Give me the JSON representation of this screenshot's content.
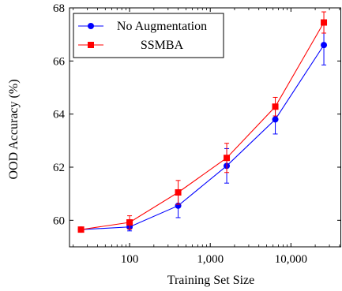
{
  "chart_data": {
    "type": "line",
    "xscale": "log",
    "xlabel": "Training Set Size",
    "ylabel": "OOD Accuracy (%)",
    "xlim": [
      18,
      42000
    ],
    "ylim": [
      59.0,
      68.0
    ],
    "xticks": [
      {
        "value": 100,
        "label": "100"
      },
      {
        "value": 1000,
        "label": "1,000"
      },
      {
        "value": 10000,
        "label": "10,000"
      }
    ],
    "yticks": [
      {
        "value": 60,
        "label": "60"
      },
      {
        "value": 62,
        "label": "62"
      },
      {
        "value": 64,
        "label": "64"
      },
      {
        "value": 66,
        "label": "66"
      },
      {
        "value": 68,
        "label": "68"
      }
    ],
    "grid": false,
    "legend_position": "top-left",
    "series": [
      {
        "name": "No Augmentation",
        "color": "#0000ff",
        "marker": "circle",
        "x": [
          25,
          100,
          400,
          1600,
          6400,
          25600
        ],
        "y": [
          59.65,
          59.75,
          60.55,
          62.05,
          63.8,
          66.6
        ],
        "err": [
          0.05,
          0.15,
          0.45,
          0.65,
          0.55,
          0.75
        ]
      },
      {
        "name": "SSMBA",
        "color": "#ff0000",
        "marker": "square",
        "x": [
          25,
          100,
          400,
          1600,
          6400,
          25600
        ],
        "y": [
          59.65,
          59.92,
          61.05,
          62.35,
          64.28,
          67.45
        ],
        "err": [
          0.05,
          0.25,
          0.45,
          0.55,
          0.35,
          0.4
        ]
      }
    ]
  }
}
